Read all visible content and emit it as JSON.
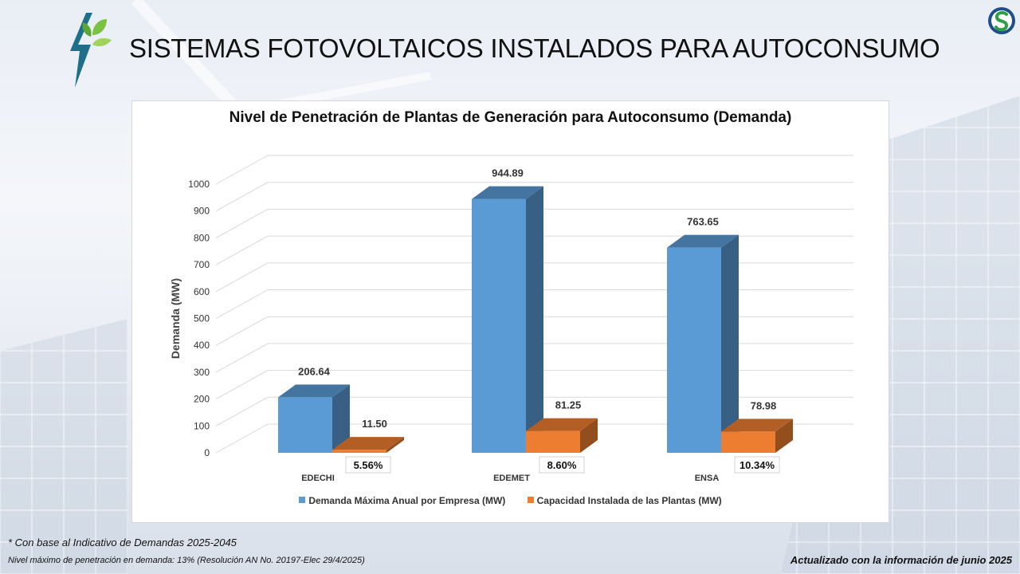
{
  "header": {
    "title": "SISTEMAS FOTOVOLTAICOS INSTALADOS PARA AUTOCONSUMO"
  },
  "chart_data": {
    "type": "bar",
    "title": "Nivel de Penetración de Plantas de Generación para Autoconsumo (Demanda)",
    "xlabel": "",
    "ylabel": "Demanda (MW)",
    "ylim": [
      0,
      1000
    ],
    "yticks": [
      "0",
      "100",
      "200",
      "300",
      "400",
      "500",
      "600",
      "700",
      "800",
      "900",
      "1000"
    ],
    "grid": true,
    "legend_position": "bottom",
    "categories": [
      "EDECHI",
      "EDEMET",
      "ENSA"
    ],
    "series": [
      {
        "name": "Demanda Máxima Anual por Empresa (MW)",
        "color": "#5b9bd5",
        "values": [
          206.64,
          944.89,
          763.65
        ],
        "labels": [
          "206.64",
          "944.89",
          "763.65"
        ]
      },
      {
        "name": "Capacidad Instalada de las Plantas (MW)",
        "color": "#ed7d31",
        "values": [
          11.5,
          81.25,
          78.98
        ],
        "labels": [
          "11.50",
          "81.25",
          "78.98"
        ]
      }
    ],
    "annotations": [
      "5.56%",
      "8.60%",
      "10.34%"
    ]
  },
  "footer": {
    "note1": "* Con base al  Indicativo de Demandas 2025-2045",
    "note2": "Nivel máximo de penetración en demanda: 13% (Resolución AN No. 20197-Elec 29/4/2025)",
    "updated": "Actualizado con la información de junio 2025"
  }
}
